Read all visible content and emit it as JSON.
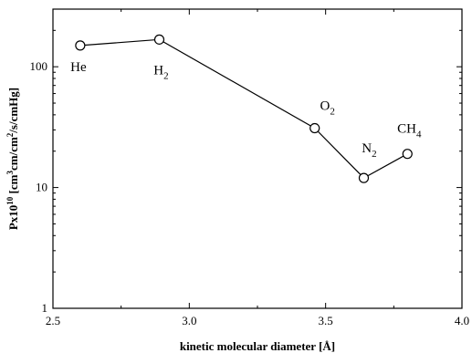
{
  "chart_data": {
    "type": "line",
    "xscale": "linear",
    "yscale": "log",
    "xlim": [
      2.5,
      4.0
    ],
    "ylim": [
      1,
      300
    ],
    "x_ticks": [
      2.5,
      3.0,
      3.5,
      4.0
    ],
    "x_tick_labels": [
      "2.5",
      "3.0",
      "3.5",
      "4.0"
    ],
    "y_ticks": [
      1,
      10,
      100
    ],
    "y_tick_labels": [
      "1",
      "10",
      "100"
    ],
    "xlabel": "kinetic molecular diameter [Å]",
    "ylabel_parts": [
      {
        "text": "Px10",
        "style": "normal"
      },
      {
        "text": "10",
        "style": "sup"
      },
      {
        "text": " [cm",
        "style": "normal"
      },
      {
        "text": "3",
        "style": "sup"
      },
      {
        "text": "cm/cm",
        "style": "normal"
      },
      {
        "text": "2",
        "style": "sup"
      },
      {
        "text": "/s/cmHg]",
        "style": "normal"
      }
    ],
    "marker": "open-circle",
    "series": [
      {
        "points": [
          {
            "x": 2.6,
            "y": 150,
            "label_base": "He",
            "label_sub": ""
          },
          {
            "x": 2.89,
            "y": 168,
            "label_base": "H",
            "label_sub": "2"
          },
          {
            "x": 3.46,
            "y": 31,
            "label_base": "O",
            "label_sub": "2"
          },
          {
            "x": 3.64,
            "y": 12,
            "label_base": "N",
            "label_sub": "2"
          },
          {
            "x": 3.8,
            "y": 19,
            "label_base": "CH",
            "label_sub": "4"
          }
        ]
      }
    ],
    "grid": false,
    "colors": {
      "line": "#000000",
      "marker_fill": "#ffffff",
      "text": "#000000"
    }
  }
}
